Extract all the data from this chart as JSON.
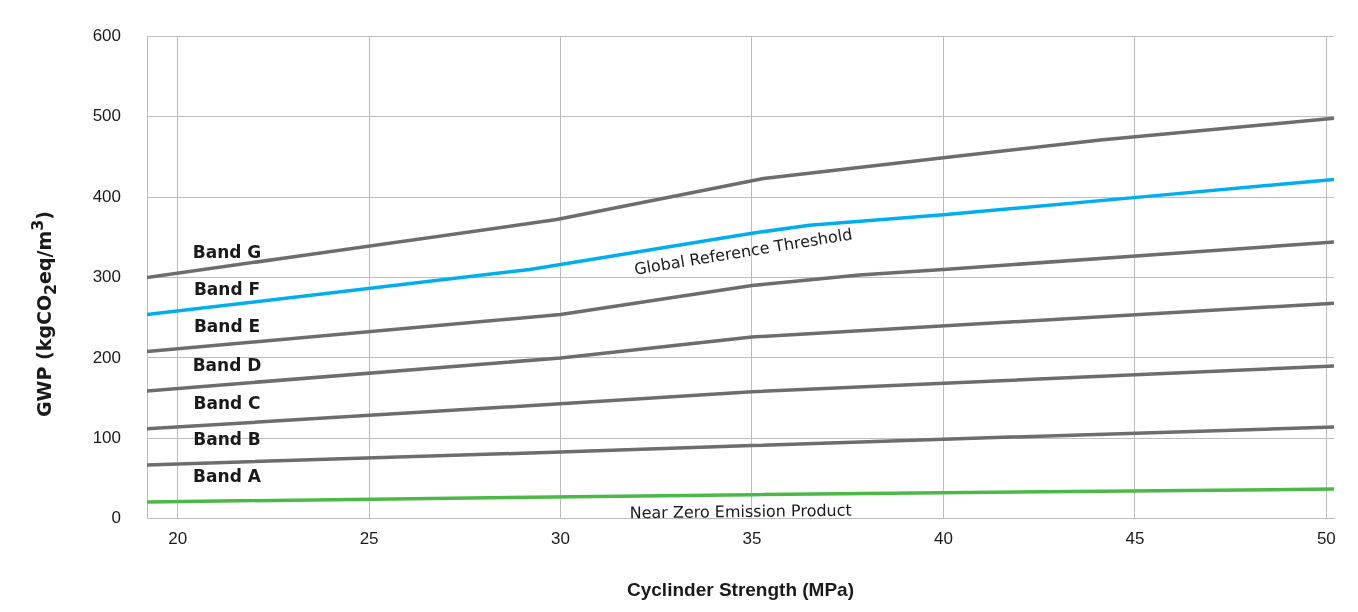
{
  "chart_data": {
    "type": "line",
    "xlabel": "Cyclinder Strength (MPa)",
    "ylabel": "GWP (kgCO$_{2}$eq/m$^{3}$)",
    "xlim": [
      19.2,
      50.2
    ],
    "xticks": [
      20,
      25,
      30,
      35,
      40,
      45,
      50
    ],
    "ylim": [
      0,
      600
    ],
    "yticks": [
      0,
      100,
      200,
      300,
      400,
      500,
      600
    ],
    "grid": true,
    "legend": false,
    "marker": "none",
    "line_style": "solid",
    "series": [
      {
        "color": "#6d6d6d",
        "x": [
          19.2,
          29.9,
          35.3,
          40,
          44.1,
          50.2
        ],
        "values": [
          300,
          372,
          423,
          449,
          471,
          498
        ]
      },
      {
        "name": "Global Reference Threshold",
        "color": "#00aeef",
        "x": [
          19.2,
          29.2,
          35,
          36.5,
          40,
          44.9,
          50.2
        ],
        "values": [
          254,
          310,
          355,
          365,
          378,
          399,
          422
        ]
      },
      {
        "color": "#6d6d6d",
        "x": [
          19.2,
          30,
          35,
          37.8,
          40,
          50.2
        ],
        "values": [
          208,
          254,
          290,
          303,
          310,
          344
        ]
      },
      {
        "color": "#6d6d6d",
        "x": [
          19.2,
          30,
          35,
          50.2
        ],
        "values": [
          159,
          200,
          226,
          268
        ]
      },
      {
        "color": "#6d6d6d",
        "x": [
          19.2,
          30,
          35,
          50.2
        ],
        "values": [
          112,
          143,
          158,
          190
        ]
      },
      {
        "color": "#6d6d6d",
        "x": [
          19.2,
          30,
          35,
          40,
          50.2
        ],
        "values": [
          67,
          83,
          91,
          99,
          114
        ]
      },
      {
        "name": "Near Zero Emission Product",
        "color": "#4cb848",
        "x": [
          19.2,
          35,
          50.2
        ],
        "values": [
          21,
          30,
          37
        ]
      }
    ],
    "annotations": [
      "Band G",
      "Band F",
      "Band E",
      "Band D",
      "Band C",
      "Band B",
      "Band A"
    ]
  }
}
